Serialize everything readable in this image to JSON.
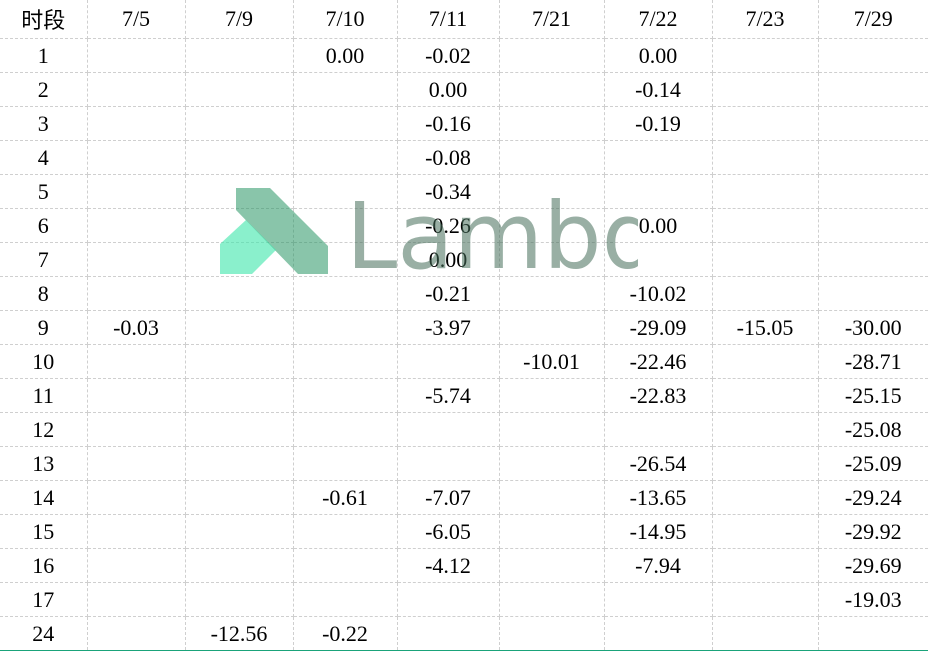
{
  "watermark": "Lambda",
  "table": {
    "header": [
      "时段",
      "7/5",
      "7/9",
      "7/10",
      "7/11",
      "7/21",
      "7/22",
      "7/23",
      "7/29"
    ],
    "rows": [
      [
        "1",
        null,
        null,
        "0.00",
        "-0.02",
        null,
        "0.00",
        null,
        null
      ],
      [
        "2",
        null,
        null,
        null,
        "0.00",
        null,
        "-0.14",
        null,
        null
      ],
      [
        "3",
        null,
        null,
        null,
        "-0.16",
        null,
        "-0.19",
        null,
        null
      ],
      [
        "4",
        null,
        null,
        null,
        "-0.08",
        null,
        null,
        null,
        null
      ],
      [
        "5",
        null,
        null,
        null,
        "-0.34",
        null,
        null,
        null,
        null
      ],
      [
        "6",
        null,
        null,
        null,
        "-0.26",
        null,
        "0.00",
        null,
        null
      ],
      [
        "7",
        null,
        null,
        null,
        "0.00",
        null,
        null,
        null,
        null
      ],
      [
        "8",
        null,
        null,
        null,
        "-0.21",
        null,
        "-10.02",
        null,
        null
      ],
      [
        "9",
        "-0.03",
        null,
        null,
        "-3.97",
        null,
        "-29.09",
        "-15.05",
        "-30.00"
      ],
      [
        "10",
        null,
        null,
        null,
        null,
        "-10.01",
        "-22.46",
        null,
        "-28.71"
      ],
      [
        "11",
        null,
        null,
        null,
        "-5.74",
        null,
        "-22.83",
        null,
        "-25.15"
      ],
      [
        "12",
        null,
        null,
        null,
        null,
        null,
        null,
        null,
        "-25.08"
      ],
      [
        "13",
        null,
        null,
        null,
        null,
        null,
        "-26.54",
        null,
        "-25.09"
      ],
      [
        "14",
        null,
        null,
        "-0.61",
        "-7.07",
        null,
        "-13.65",
        null,
        "-29.24"
      ],
      [
        "15",
        null,
        null,
        null,
        "-6.05",
        null,
        "-14.95",
        null,
        "-29.92"
      ],
      [
        "16",
        null,
        null,
        null,
        "-4.12",
        null,
        "-7.94",
        null,
        "-29.69"
      ],
      [
        "17",
        null,
        null,
        null,
        null,
        null,
        null,
        null,
        "-19.03"
      ],
      [
        "24",
        null,
        "-12.56",
        "-0.22",
        null,
        null,
        null,
        null,
        null
      ]
    ]
  }
}
